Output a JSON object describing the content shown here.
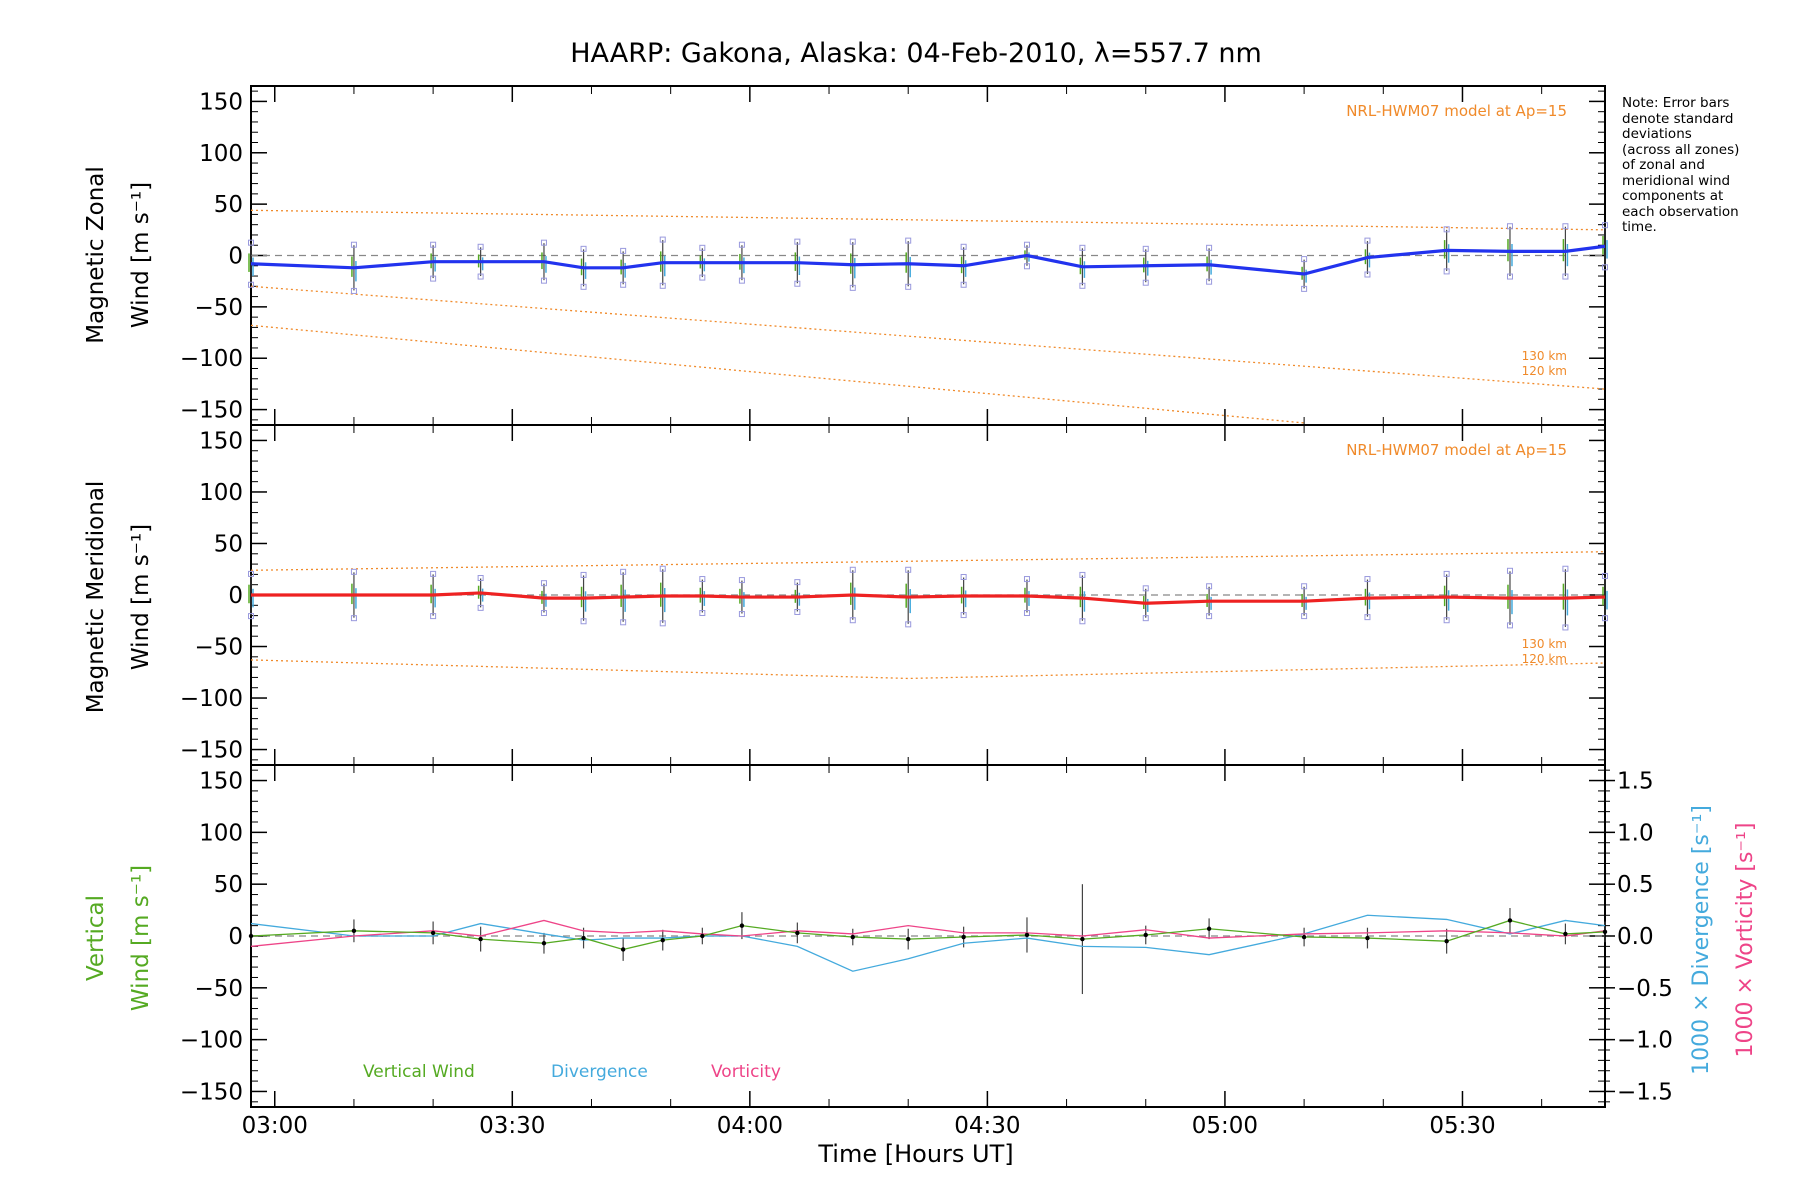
{
  "title": "HAARP: Gakona,  Alaska: 04-Feb-2010, λ=557.7 nm",
  "note_lines": [
    "Note: Error bars",
    "denote standard",
    "deviations",
    "(across all zones)",
    "of zonal and",
    "meridional wind",
    "components at",
    "each observation",
    "time."
  ],
  "xlabel": "Time [Hours UT]",
  "colors": {
    "zonal": "#2233ee",
    "meridional": "#ee2222",
    "model": "#f08a2a",
    "vertical": "#55aa22",
    "divergence": "#44aadd",
    "vorticity": "#ee4488",
    "errorbar": "#444444",
    "scatter": "#9999dd",
    "zero_line": "#888888"
  },
  "chart_data": [
    {
      "type": "line",
      "panel": "zonal",
      "ylabel_line1": "Magnetic Zonal",
      "ylabel_line2": "Wind [m s⁻¹]",
      "ylim": [
        -165,
        165
      ],
      "yticks": [
        -150,
        -100,
        -50,
        0,
        50,
        100,
        150
      ],
      "ytick_labels": [
        "−150",
        "−100",
        "−50",
        "0",
        "50",
        "100",
        "150"
      ],
      "xlim": [
        "02:57",
        "05:48"
      ],
      "xticks": [
        "03:00",
        "03:30",
        "04:00",
        "04:30",
        "05:00",
        "05:30"
      ],
      "model_label": "NRL-HWM07 model at Ap=15",
      "model_alt_labels": [
        "130 km",
        "120 km"
      ],
      "series": [
        {
          "x": [
            "02:57",
            "03:10",
            "03:20",
            "03:26",
            "03:34",
            "03:39",
            "03:44",
            "03:49",
            "03:54",
            "03:59",
            "04:06",
            "04:13",
            "04:20",
            "04:27",
            "04:35",
            "04:42",
            "04:50",
            "04:58",
            "05:10",
            "05:18",
            "05:28",
            "05:36",
            "05:43",
            "05:48"
          ],
          "values": [
            -8,
            -12,
            -6,
            -6,
            -6,
            -12,
            -12,
            -7,
            -7,
            -7,
            -7,
            -9,
            -8,
            -10,
            0,
            -11,
            -10,
            -9,
            -18,
            -2,
            5,
            4,
            4,
            9
          ],
          "errors": [
            20,
            22,
            16,
            14,
            18,
            18,
            16,
            22,
            14,
            17,
            20,
            22,
            22,
            18,
            10,
            18,
            16,
            16,
            14,
            16,
            20,
            24,
            24,
            20
          ]
        }
      ],
      "model_lines": [
        {
          "x": [
            "02:57",
            "05:48"
          ],
          "values": [
            44,
            25
          ]
        },
        {
          "x": [
            "02:57",
            "05:48"
          ],
          "values": [
            -30,
            -130
          ]
        },
        {
          "x": [
            "02:57",
            "05:10"
          ],
          "values": [
            -68,
            -163
          ]
        }
      ]
    },
    {
      "type": "line",
      "panel": "meridional",
      "ylabel_line1": "Magnetic Meridional",
      "ylabel_line2": "Wind [m s⁻¹]",
      "ylim": [
        -165,
        165
      ],
      "yticks": [
        -150,
        -100,
        -50,
        0,
        50,
        100,
        150
      ],
      "ytick_labels": [
        "−150",
        "−100",
        "−50",
        "0",
        "50",
        "100",
        "150"
      ],
      "model_label": "NRL-HWM07 model at Ap=15",
      "model_alt_labels": [
        "130 km",
        "120 km"
      ],
      "series": [
        {
          "x": [
            "02:57",
            "03:10",
            "03:20",
            "03:26",
            "03:34",
            "03:39",
            "03:44",
            "03:49",
            "03:54",
            "03:59",
            "04:06",
            "04:13",
            "04:20",
            "04:27",
            "04:35",
            "04:42",
            "04:50",
            "04:58",
            "05:10",
            "05:18",
            "05:28",
            "05:36",
            "05:43",
            "05:48"
          ],
          "values": [
            0,
            0,
            0,
            2,
            -3,
            -3,
            -2,
            -1,
            -1,
            -2,
            -2,
            0,
            -2,
            -1,
            -1,
            -3,
            -8,
            -6,
            -6,
            -3,
            -2,
            -3,
            -3,
            -2
          ],
          "errors": [
            20,
            22,
            20,
            14,
            14,
            22,
            24,
            26,
            16,
            16,
            14,
            24,
            26,
            18,
            16,
            22,
            14,
            14,
            14,
            18,
            22,
            26,
            28,
            20
          ]
        }
      ],
      "model_lines": [
        {
          "x": [
            "02:57",
            "05:48"
          ],
          "values": [
            24,
            42
          ]
        },
        {
          "x": [
            "02:57",
            "04:20",
            "05:48"
          ],
          "values": [
            -63,
            -81,
            -66
          ]
        }
      ]
    },
    {
      "type": "line",
      "panel": "vertical",
      "ylabel_line1": "Vertical",
      "ylabel_line2": "Wind [m s⁻¹]",
      "ylim": [
        -165,
        165
      ],
      "yticks": [
        -150,
        -100,
        -50,
        0,
        50,
        100,
        150
      ],
      "ytick_labels": [
        "−150",
        "−100",
        "−50",
        "0",
        "50",
        "100",
        "150"
      ],
      "right_ylabel_div": "1000 × Divergence [s⁻¹]",
      "right_ylabel_vor": "1000 × Vorticity [s⁻¹]",
      "right_ylim": [
        -1.65,
        1.65
      ],
      "right_yticks": [
        -1.5,
        -1.0,
        -0.5,
        0.0,
        0.5,
        1.0,
        1.5
      ],
      "right_ytick_labels": [
        "−1.5",
        "−1.0",
        "−0.5",
        "0.0",
        "0.5",
        "1.0",
        "1.5"
      ],
      "legend": [
        "Vertical Wind",
        "Divergence",
        "Vorticity"
      ],
      "series": [
        {
          "name": "Vertical Wind",
          "x": [
            "02:57",
            "03:10",
            "03:20",
            "03:26",
            "03:34",
            "03:39",
            "03:44",
            "03:49",
            "03:54",
            "03:59",
            "04:06",
            "04:13",
            "04:20",
            "04:27",
            "04:35",
            "04:42",
            "04:50",
            "04:58",
            "05:10",
            "05:18",
            "05:28",
            "05:36",
            "05:43",
            "05:48"
          ],
          "values": [
            0,
            5,
            3,
            -3,
            -7,
            -2,
            -13,
            -4,
            0,
            10,
            3,
            -1,
            -3,
            -1,
            1,
            -3,
            1,
            7,
            -1,
            -2,
            -5,
            15,
            2,
            4
          ],
          "errors": [
            10,
            11,
            11,
            12,
            10,
            10,
            11,
            10,
            8,
            13,
            10,
            8,
            10,
            10,
            17,
            53,
            9,
            10,
            9,
            10,
            12,
            12,
            10,
            10
          ]
        },
        {
          "name": "Divergence",
          "x": [
            "02:57",
            "03:10",
            "03:20",
            "03:26",
            "03:34",
            "03:39",
            "03:44",
            "03:49",
            "03:54",
            "03:59",
            "04:06",
            "04:13",
            "04:20",
            "04:27",
            "04:35",
            "04:42",
            "04:50",
            "04:58",
            "05:10",
            "05:18",
            "05:28",
            "05:36",
            "05:43",
            "05:48"
          ],
          "values": [
            0.12,
            0.0,
            0.0,
            0.12,
            0.02,
            -0.04,
            -0.02,
            -0.02,
            0.0,
            0.0,
            -0.1,
            -0.34,
            -0.22,
            -0.07,
            -0.02,
            -0.1,
            -0.11,
            -0.18,
            0.02,
            0.2,
            0.16,
            0.02,
            0.15,
            0.1
          ]
        },
        {
          "name": "Vorticity",
          "x": [
            "02:57",
            "03:10",
            "03:20",
            "03:26",
            "03:34",
            "03:39",
            "03:44",
            "03:49",
            "03:54",
            "03:59",
            "04:06",
            "04:13",
            "04:20",
            "04:27",
            "04:35",
            "04:42",
            "04:50",
            "04:58",
            "05:10",
            "05:18",
            "05:28",
            "05:36",
            "05:43",
            "05:48"
          ],
          "values": [
            -0.1,
            0.0,
            0.05,
            0.0,
            0.15,
            0.05,
            0.03,
            0.05,
            0.02,
            0.0,
            0.05,
            0.02,
            0.1,
            0.03,
            0.03,
            0.0,
            0.06,
            -0.02,
            0.02,
            0.03,
            0.05,
            0.03,
            0.0,
            0.05
          ]
        }
      ]
    }
  ]
}
